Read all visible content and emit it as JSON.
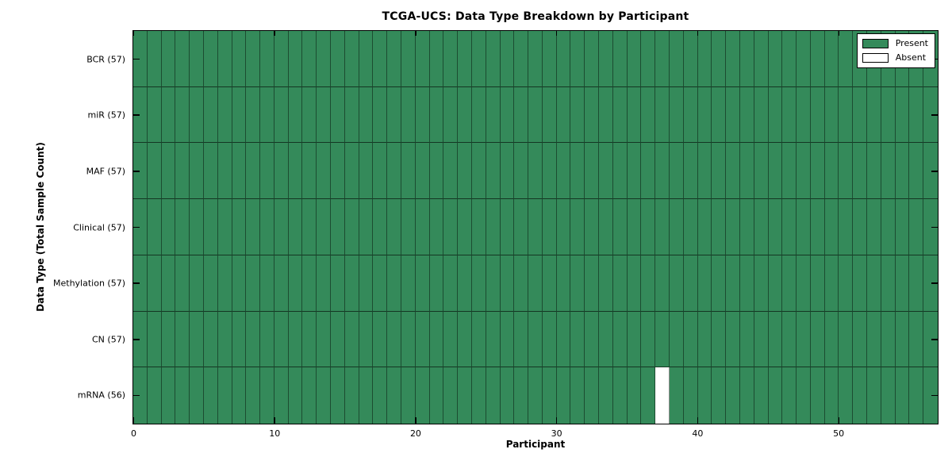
{
  "chart_data": {
    "type": "heatmap",
    "title": "TCGA-UCS: Data Type Breakdown by Participant",
    "xlabel": "Participant",
    "ylabel": "Data Type (Total Sample Count)",
    "n_participants": 57,
    "x_ticks": [
      0,
      10,
      20,
      30,
      40,
      50
    ],
    "xlim": [
      0,
      57
    ],
    "grid": false,
    "tick_direction": "in",
    "rows": [
      {
        "label": "BCR (57)",
        "data_type": "BCR",
        "present_count": 57
      },
      {
        "label": "miR (57)",
        "data_type": "miR",
        "present_count": 57
      },
      {
        "label": "MAF (57)",
        "data_type": "MAF",
        "present_count": 57
      },
      {
        "label": "Clinical (57)",
        "data_type": "Clinical",
        "present_count": 57
      },
      {
        "label": "Methylation (57)",
        "data_type": "Methylation",
        "present_count": 57
      },
      {
        "label": "CN (57)",
        "data_type": "CN",
        "present_count": 57
      },
      {
        "label": "mRNA (56)",
        "data_type": "mRNA",
        "present_count": 56
      }
    ],
    "absent_cells": [
      {
        "row_label": "mRNA (56)",
        "participant_index": 37
      }
    ],
    "colors": {
      "present": "#348a5a",
      "absent": "#ffffff",
      "spine": "#000000"
    },
    "legend": {
      "position": "upper right",
      "items": [
        {
          "label": "Present",
          "swatch": "present"
        },
        {
          "label": "Absent",
          "swatch": "absent"
        }
      ]
    }
  }
}
